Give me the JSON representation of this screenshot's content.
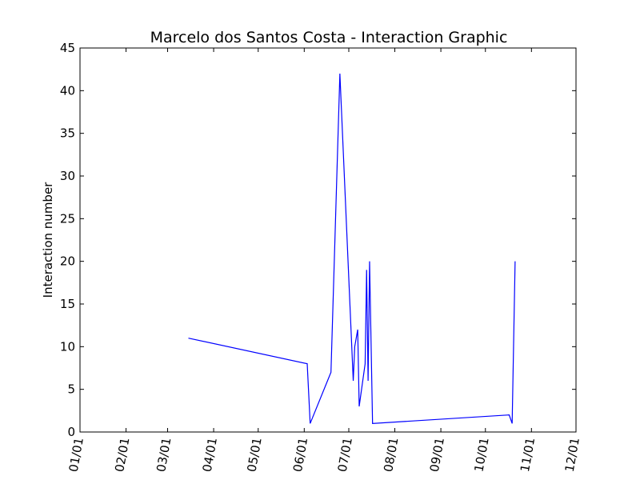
{
  "chart_data": {
    "type": "line",
    "title": "Marcelo dos Santos Costa - Interaction Graphic",
    "xlabel": "",
    "ylabel": "Interaction number",
    "x_axis_type": "date",
    "xlim": [
      "01/01",
      "12/01"
    ],
    "ylim": [
      0,
      45
    ],
    "x_ticks": [
      "01/01",
      "02/01",
      "03/01",
      "04/01",
      "05/01",
      "06/01",
      "07/01",
      "08/01",
      "09/01",
      "10/01",
      "11/01",
      "12/01"
    ],
    "y_ticks": [
      0,
      5,
      10,
      15,
      20,
      25,
      30,
      35,
      40,
      45
    ],
    "grid": false,
    "legend": "none",
    "series": [
      {
        "color": "#0000ff",
        "points": [
          {
            "x": "03/15",
            "y": 11
          },
          {
            "x": "06/03",
            "y": 8
          },
          {
            "x": "06/05",
            "y": 1
          },
          {
            "x": "06/19",
            "y": 7
          },
          {
            "x": "06/25",
            "y": 42
          },
          {
            "x": "07/04",
            "y": 6
          },
          {
            "x": "07/05",
            "y": 10
          },
          {
            "x": "07/07",
            "y": 12
          },
          {
            "x": "07/08",
            "y": 3
          },
          {
            "x": "07/12",
            "y": 8
          },
          {
            "x": "07/13",
            "y": 19
          },
          {
            "x": "07/14",
            "y": 6
          },
          {
            "x": "07/15",
            "y": 20
          },
          {
            "x": "07/17",
            "y": 1
          },
          {
            "x": "10/17",
            "y": 2
          },
          {
            "x": "10/19",
            "y": 1
          },
          {
            "x": "10/21",
            "y": 20
          }
        ]
      }
    ]
  }
}
